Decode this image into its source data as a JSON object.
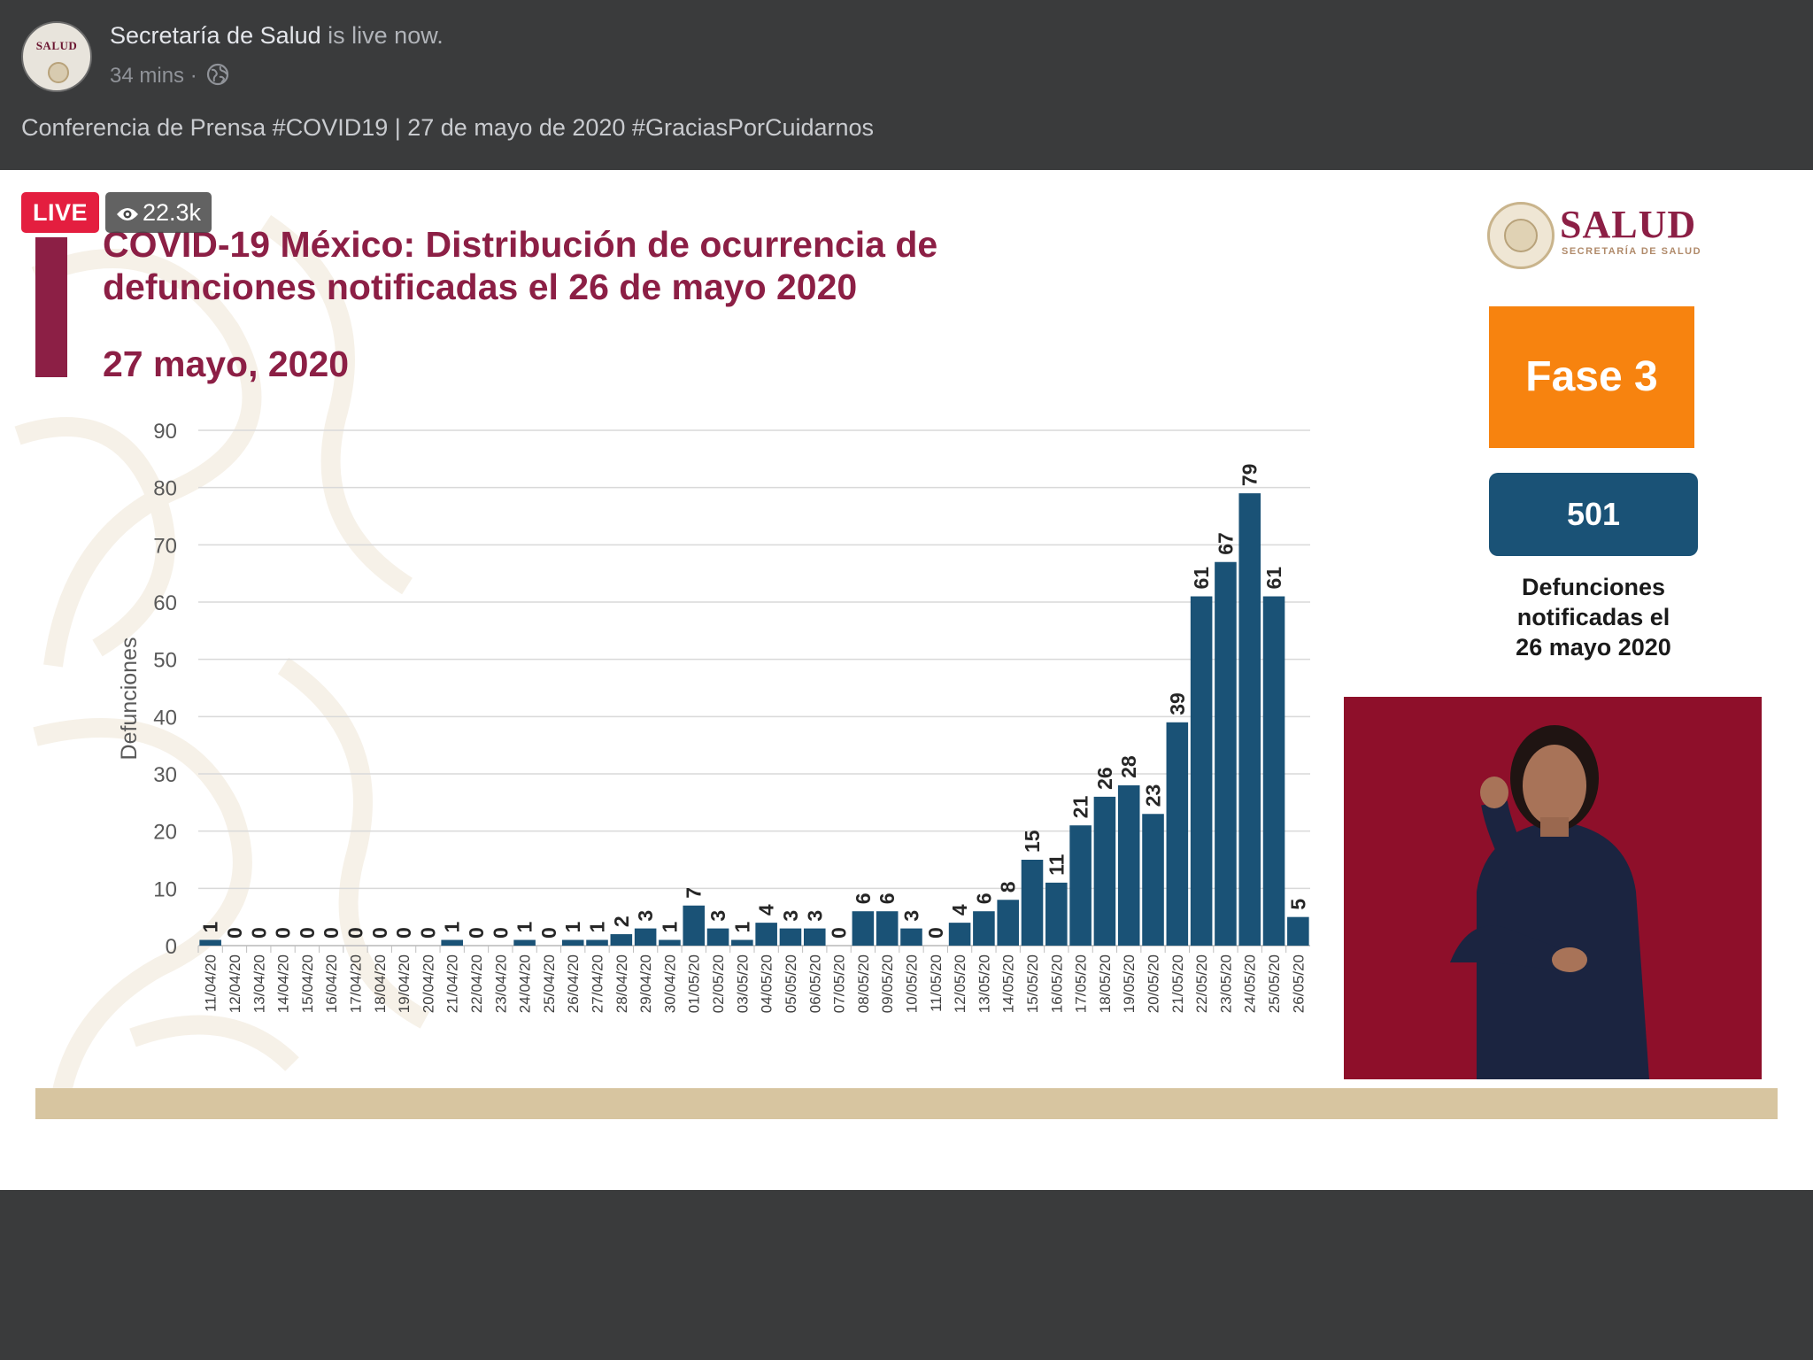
{
  "post": {
    "avatar_label": "SALUD",
    "page_name": "Secretaría de Salud",
    "live_status": " is live now.",
    "time_ago": "34 mins",
    "separator": "·",
    "privacy_icon": "globe-icon",
    "caption": "Conferencia de Prensa #COVID19 | 27 de mayo de 2020 #GraciasPorCuidarnos"
  },
  "video": {
    "live_label": "LIVE",
    "viewers_icon": "eye-icon",
    "viewers": "22.3k"
  },
  "slide": {
    "title_line1": "COVID-19 México: Distribución de ocurrencia de",
    "title_line2": "defunciones notificadas el 26 de mayo 2020",
    "date": "27 mayo, 2020",
    "logo_text": "SALUD",
    "logo_subtext": "SECRETARÍA DE SALUD",
    "phase_label": "Fase 3",
    "total_count": "501",
    "count_caption_line1": "Defunciones",
    "count_caption_line2": "notificadas el",
    "count_caption_line3": "26 mayo 2020"
  },
  "colors": {
    "bar": "#1a5276",
    "accent": "#8c1f45",
    "phase": "#f7830f",
    "live": "#e41e3f"
  },
  "chart_data": {
    "type": "bar",
    "title": "COVID-19 México: Distribución de ocurrencia de defunciones notificadas el 26 de mayo 2020",
    "xlabel": "",
    "ylabel": "Defunciones",
    "ylim": [
      0,
      90
    ],
    "yticks": [
      0,
      10,
      20,
      30,
      40,
      50,
      60,
      70,
      80,
      90
    ],
    "grid": true,
    "categories": [
      "11/04/20",
      "12/04/20",
      "13/04/20",
      "14/04/20",
      "15/04/20",
      "16/04/20",
      "17/04/20",
      "18/04/20",
      "19/04/20",
      "20/04/20",
      "21/04/20",
      "22/04/20",
      "23/04/20",
      "24/04/20",
      "25/04/20",
      "26/04/20",
      "27/04/20",
      "28/04/20",
      "29/04/20",
      "30/04/20",
      "01/05/20",
      "02/05/20",
      "03/05/20",
      "04/05/20",
      "05/05/20",
      "06/05/20",
      "07/05/20",
      "08/05/20",
      "09/05/20",
      "10/05/20",
      "11/05/20",
      "12/05/20",
      "13/05/20",
      "14/05/20",
      "15/05/20",
      "16/05/20",
      "17/05/20",
      "18/05/20",
      "19/05/20",
      "20/05/20",
      "21/05/20",
      "22/05/20",
      "23/05/20",
      "24/05/20",
      "25/05/20",
      "26/05/20"
    ],
    "values": [
      1,
      0,
      0,
      0,
      0,
      0,
      0,
      0,
      0,
      0,
      1,
      0,
      0,
      1,
      0,
      1,
      1,
      2,
      3,
      1,
      7,
      3,
      1,
      4,
      3,
      3,
      0,
      6,
      6,
      3,
      0,
      4,
      6,
      8,
      15,
      11,
      21,
      26,
      28,
      23,
      39,
      61,
      67,
      79,
      61,
      5
    ]
  }
}
